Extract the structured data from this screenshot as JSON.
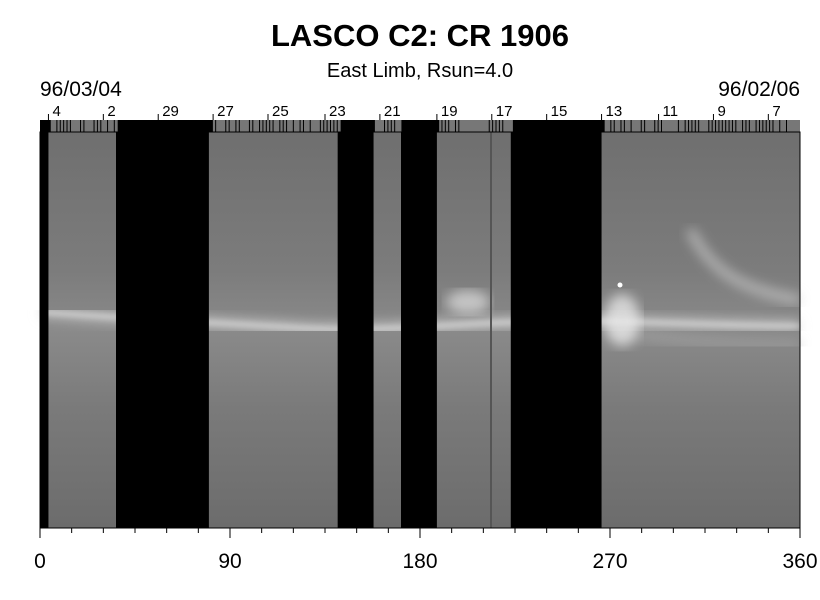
{
  "header": {
    "title": "LASCO C2: CR 1906",
    "subtitle": "East Limb, Rsun=4.0",
    "date_left": "96/03/04",
    "date_right": "96/02/06"
  },
  "chart_data": {
    "type": "heatmap",
    "title": "LASCO C2: CR 1906",
    "subtitle": "East Limb, Rsun=4.0",
    "xlabel": "",
    "ylabel": "",
    "xlim": [
      0,
      360
    ],
    "x_ticks": [
      0,
      90,
      180,
      270,
      360
    ],
    "top_day_ticks": [
      {
        "label": "4",
        "x": 4
      },
      {
        "label": "2",
        "x": 30
      },
      {
        "label": "29",
        "x": 56
      },
      {
        "label": "27",
        "x": 82
      },
      {
        "label": "25",
        "x": 108
      },
      {
        "label": "23",
        "x": 135
      },
      {
        "label": "21",
        "x": 161
      },
      {
        "label": "19",
        "x": 188
      },
      {
        "label": "17",
        "x": 214
      },
      {
        "label": "15",
        "x": 240
      },
      {
        "label": "13",
        "x": 266
      },
      {
        "label": "11",
        "x": 293
      },
      {
        "label": "9",
        "x": 319
      },
      {
        "label": "7",
        "x": 345
      }
    ],
    "data_gaps": [
      [
        0,
        4
      ],
      [
        36,
        80
      ],
      [
        141,
        158
      ],
      [
        171,
        188
      ],
      [
        223,
        266
      ]
    ],
    "background_color": "#7a7a7a",
    "gap_color": "#000000"
  }
}
